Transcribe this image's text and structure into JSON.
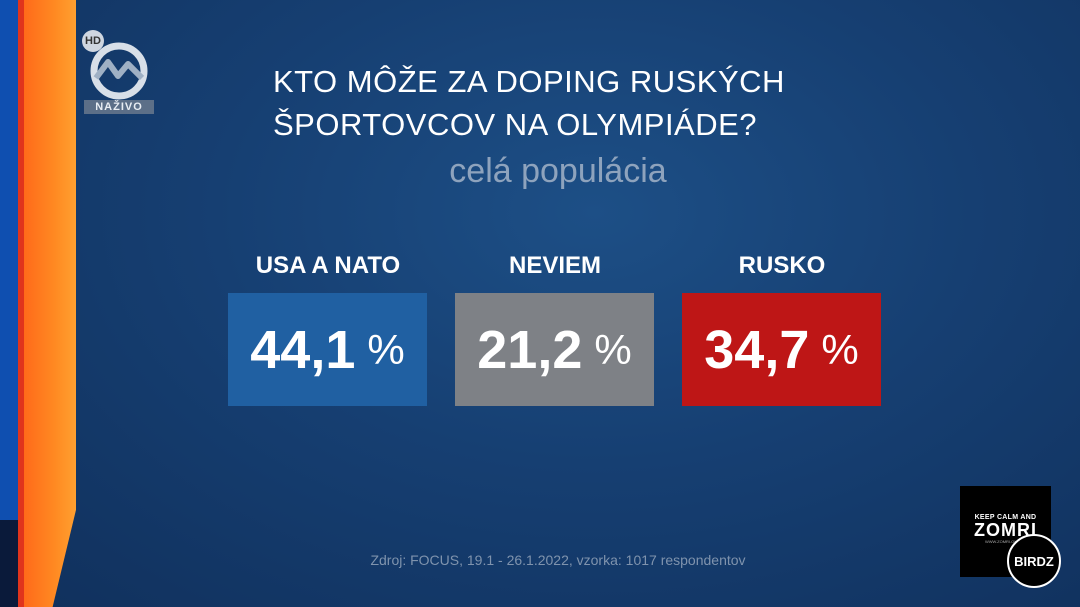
{
  "channel": {
    "hd_badge": "HD",
    "live_label": "NAŽIVO",
    "logo_icon": "tv-markiza-logo-icon"
  },
  "chart_data": {
    "type": "table",
    "title": "KTO MÔŽE ZA DOPING RUSKÝCH ŠPORTOVCOV NA OLYMPIÁDE?",
    "title_lines": [
      "KTO MÔŽE ZA DOPING RUSKÝCH",
      "ŠPORTOVCOV NA OLYMPIÁDE?"
    ],
    "subtitle": "celá populácia",
    "unit": "%",
    "categories": [
      {
        "label": "USA A NATO",
        "value": 44.1,
        "value_text": "44,1",
        "color": "#2060a2"
      },
      {
        "label": "NEVIEM",
        "value": 21.2,
        "value_text": "21,2",
        "color": "#7e8186"
      },
      {
        "label": "RUSKO",
        "value": 34.7,
        "value_text": "34,7",
        "color": "#be1616"
      }
    ],
    "source": "Zdroj: FOCUS, 19.1 - 26.1.2022, vzorka: 1017 respondentov"
  },
  "watermark": {
    "line1": "KEEP CALM AND",
    "line2": "ZOMRI",
    "line3": "WWW.ZOMRI.ONLINE",
    "badge": "BIRDZ"
  }
}
